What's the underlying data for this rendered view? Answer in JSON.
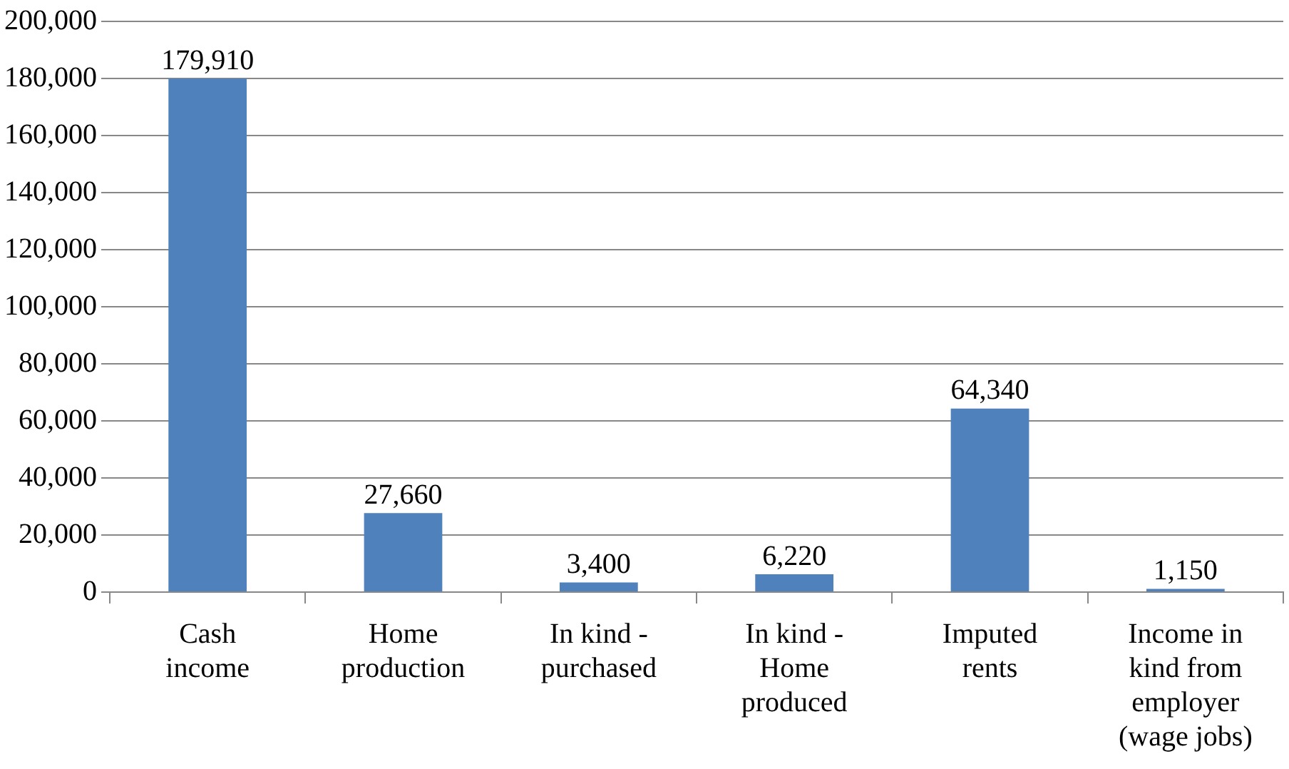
{
  "chart_data": {
    "type": "bar",
    "categories": [
      "Cash income",
      "Home production",
      "In kind - purchased",
      "In kind - Home produced",
      "Imputed rents",
      "Income in kind from employer (wage jobs)"
    ],
    "values": [
      179910,
      27660,
      3400,
      6220,
      64340,
      1150
    ],
    "value_labels": [
      "179,910",
      "27,660",
      "3,400",
      "6,220",
      "64,340",
      "1,150"
    ],
    "color": "#4f81bd",
    "ylim": [
      0,
      200000
    ],
    "yticks": [
      {
        "value": 0,
        "label": "0"
      },
      {
        "value": 20000,
        "label": "20,000"
      },
      {
        "value": 40000,
        "label": "40,000"
      },
      {
        "value": 60000,
        "label": "60,000"
      },
      {
        "value": 80000,
        "label": "80,000"
      },
      {
        "value": 100000,
        "label": "100,000"
      },
      {
        "value": 120000,
        "label": "120,000"
      },
      {
        "value": 140000,
        "label": "140,000"
      },
      {
        "value": 160000,
        "label": "160,000"
      },
      {
        "value": 180000,
        "label": "180,000"
      },
      {
        "value": 200000,
        "label": "200,000"
      }
    ],
    "grid": "y",
    "legend": false
  }
}
